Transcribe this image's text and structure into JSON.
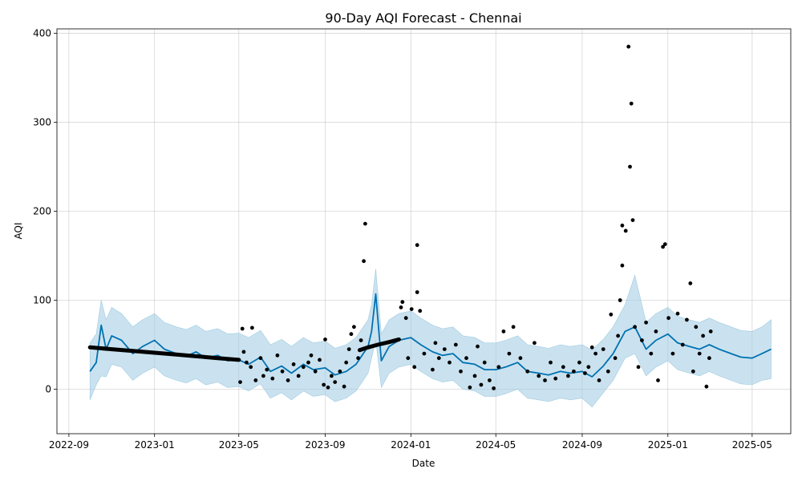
{
  "chart_data": {
    "type": "line",
    "title": "90-Day AQI Forecast - Chennai",
    "xlabel": "Date",
    "ylabel": "AQI",
    "xlim": [
      "2022-08-15",
      "2025-06-25"
    ],
    "ylim": [
      -50,
      405
    ],
    "x_ticks": [
      "2022-09",
      "2023-01",
      "2023-05",
      "2023-09",
      "2024-01",
      "2024-05",
      "2024-09",
      "2025-01",
      "2025-05"
    ],
    "y_ticks": [
      0,
      100,
      200,
      300,
      400
    ],
    "grid": true,
    "colors": {
      "forecast": "#0072B2",
      "interval": "#9ecae1",
      "actual": "#000000"
    },
    "forecast": {
      "dates": [
        "2022-10-01",
        "2022-10-10",
        "2022-10-17",
        "2022-10-24",
        "2022-11-01",
        "2022-11-15",
        "2022-12-01",
        "2022-12-15",
        "2023-01-01",
        "2023-01-15",
        "2023-02-01",
        "2023-02-15",
        "2023-03-01",
        "2023-03-15",
        "2023-04-01",
        "2023-04-15",
        "2023-05-01",
        "2023-05-15",
        "2023-06-01",
        "2023-06-15",
        "2023-07-01",
        "2023-07-15",
        "2023-08-01",
        "2023-08-15",
        "2023-09-01",
        "2023-09-15",
        "2023-10-01",
        "2023-10-15",
        "2023-11-01",
        "2023-11-06",
        "2023-11-12",
        "2023-11-20",
        "2023-12-01",
        "2023-12-15",
        "2024-01-01",
        "2024-01-15",
        "2024-02-01",
        "2024-02-15",
        "2024-03-01",
        "2024-03-15",
        "2024-04-01",
        "2024-04-15",
        "2024-05-01",
        "2024-05-15",
        "2024-06-01",
        "2024-06-15",
        "2024-07-01",
        "2024-07-15",
        "2024-08-01",
        "2024-08-15",
        "2024-09-01",
        "2024-09-15",
        "2024-10-01",
        "2024-10-15",
        "2024-11-01",
        "2024-11-15",
        "2024-12-01",
        "2024-12-15",
        "2025-01-01",
        "2025-01-15",
        "2025-02-01",
        "2025-02-15",
        "2025-03-01",
        "2025-03-15",
        "2025-04-01",
        "2025-04-15",
        "2025-05-01",
        "2025-05-15",
        "2025-05-28"
      ],
      "yhat": [
        20,
        30,
        72,
        45,
        60,
        55,
        40,
        48,
        55,
        45,
        40,
        37,
        42,
        35,
        38,
        32,
        33,
        28,
        36,
        20,
        26,
        18,
        28,
        22,
        24,
        16,
        20,
        28,
        48,
        65,
        107,
        32,
        48,
        55,
        58,
        50,
        42,
        38,
        40,
        30,
        28,
        22,
        22,
        25,
        30,
        20,
        18,
        16,
        20,
        18,
        20,
        14,
        26,
        40,
        65,
        70,
        45,
        55,
        62,
        52,
        48,
        45,
        50,
        45,
        40,
        36,
        35,
        40,
        45
      ],
      "yhat_lower": [
        -12,
        5,
        15,
        14,
        28,
        25,
        10,
        18,
        25,
        15,
        10,
        7,
        12,
        5,
        8,
        2,
        3,
        -2,
        6,
        -10,
        -4,
        -12,
        -2,
        -8,
        -6,
        -14,
        -10,
        -2,
        18,
        35,
        55,
        2,
        18,
        25,
        28,
        20,
        12,
        8,
        10,
        0,
        -2,
        -8,
        -8,
        -5,
        0,
        -10,
        -12,
        -14,
        -10,
        -12,
        -10,
        -20,
        -4,
        10,
        35,
        40,
        15,
        25,
        32,
        22,
        18,
        15,
        20,
        15,
        10,
        6,
        5,
        10,
        12
      ],
      "yhat_upper": [
        52,
        62,
        100,
        78,
        92,
        85,
        70,
        78,
        85,
        75,
        70,
        67,
        72,
        65,
        68,
        62,
        63,
        58,
        66,
        50,
        56,
        48,
        58,
        52,
        54,
        46,
        50,
        58,
        78,
        95,
        135,
        62,
        78,
        85,
        88,
        80,
        72,
        68,
        70,
        60,
        58,
        52,
        52,
        55,
        60,
        50,
        48,
        46,
        50,
        48,
        50,
        44,
        56,
        70,
        95,
        128,
        75,
        85,
        92,
        82,
        78,
        75,
        80,
        75,
        70,
        66,
        65,
        70,
        78
      ]
    },
    "actual_series_A": {
      "dates": [
        "2022-10-01",
        "2022-11-01",
        "2022-12-01",
        "2023-01-01",
        "2023-02-01",
        "2023-03-01",
        "2023-04-01",
        "2023-05-01"
      ],
      "values": [
        47,
        45,
        43,
        41,
        39,
        37,
        35,
        33
      ]
    },
    "actual_series_B": {
      "dates": [
        "2023-10-20",
        "2023-11-01",
        "2023-11-15",
        "2023-12-01",
        "2023-12-15"
      ],
      "values": [
        44,
        47,
        50,
        53,
        56
      ]
    },
    "actual_scatter": [
      [
        "2023-05-03",
        8
      ],
      [
        "2023-05-06",
        68
      ],
      [
        "2023-05-08",
        42
      ],
      [
        "2023-05-12",
        30
      ],
      [
        "2023-05-18",
        25
      ],
      [
        "2023-05-20",
        69
      ],
      [
        "2023-05-25",
        10
      ],
      [
        "2023-06-01",
        35
      ],
      [
        "2023-06-05",
        15
      ],
      [
        "2023-06-10",
        22
      ],
      [
        "2023-06-18",
        12
      ],
      [
        "2023-06-25",
        38
      ],
      [
        "2023-07-02",
        20
      ],
      [
        "2023-07-10",
        10
      ],
      [
        "2023-07-18",
        28
      ],
      [
        "2023-07-25",
        15
      ],
      [
        "2023-08-01",
        25
      ],
      [
        "2023-08-08",
        30
      ],
      [
        "2023-08-12",
        38
      ],
      [
        "2023-08-18",
        20
      ],
      [
        "2023-08-24",
        33
      ],
      [
        "2023-08-30",
        5
      ],
      [
        "2023-09-01",
        56
      ],
      [
        "2023-09-05",
        2
      ],
      [
        "2023-09-10",
        15
      ],
      [
        "2023-09-15",
        8
      ],
      [
        "2023-09-22",
        20
      ],
      [
        "2023-09-28",
        3
      ],
      [
        "2023-10-01",
        30
      ],
      [
        "2023-10-05",
        45
      ],
      [
        "2023-10-08",
        62
      ],
      [
        "2023-10-12",
        70
      ],
      [
        "2023-10-18",
        35
      ],
      [
        "2023-10-22",
        55
      ],
      [
        "2023-10-26",
        144
      ],
      [
        "2023-10-28",
        186
      ],
      [
        "2023-12-18",
        92
      ],
      [
        "2023-12-20",
        98
      ],
      [
        "2023-12-25",
        80
      ],
      [
        "2023-12-28",
        35
      ],
      [
        "2024-01-02",
        90
      ],
      [
        "2024-01-06",
        25
      ],
      [
        "2024-01-10",
        162
      ],
      [
        "2024-01-10",
        109
      ],
      [
        "2024-01-14",
        88
      ],
      [
        "2024-01-20",
        40
      ],
      [
        "2024-02-01",
        22
      ],
      [
        "2024-02-05",
        52
      ],
      [
        "2024-02-10",
        35
      ],
      [
        "2024-02-18",
        45
      ],
      [
        "2024-02-25",
        30
      ],
      [
        "2024-03-05",
        50
      ],
      [
        "2024-03-12",
        20
      ],
      [
        "2024-03-20",
        35
      ],
      [
        "2024-03-25",
        2
      ],
      [
        "2024-04-01",
        15
      ],
      [
        "2024-04-05",
        48
      ],
      [
        "2024-04-10",
        5
      ],
      [
        "2024-04-15",
        30
      ],
      [
        "2024-04-22",
        10
      ],
      [
        "2024-04-28",
        1
      ],
      [
        "2024-05-05",
        25
      ],
      [
        "2024-05-12",
        65
      ],
      [
        "2024-05-20",
        40
      ],
      [
        "2024-05-26",
        70
      ],
      [
        "2024-06-05",
        35
      ],
      [
        "2024-06-15",
        20
      ],
      [
        "2024-06-25",
        52
      ],
      [
        "2024-07-01",
        15
      ],
      [
        "2024-07-10",
        10
      ],
      [
        "2024-07-18",
        30
      ],
      [
        "2024-07-25",
        12
      ],
      [
        "2024-08-05",
        25
      ],
      [
        "2024-08-12",
        15
      ],
      [
        "2024-08-20",
        20
      ],
      [
        "2024-08-28",
        30
      ],
      [
        "2024-09-05",
        18
      ],
      [
        "2024-09-10",
        25
      ],
      [
        "2024-09-15",
        47
      ],
      [
        "2024-09-20",
        40
      ],
      [
        "2024-09-25",
        10
      ],
      [
        "2024-10-01",
        45
      ],
      [
        "2024-10-08",
        20
      ],
      [
        "2024-10-12",
        84
      ],
      [
        "2024-10-18",
        35
      ],
      [
        "2024-10-22",
        60
      ],
      [
        "2024-10-25",
        100
      ],
      [
        "2024-10-28",
        184
      ],
      [
        "2024-10-28",
        139
      ],
      [
        "2024-11-02",
        178
      ],
      [
        "2024-11-06",
        385
      ],
      [
        "2024-11-08",
        250
      ],
      [
        "2024-11-10",
        321
      ],
      [
        "2024-11-12",
        190
      ],
      [
        "2024-11-15",
        70
      ],
      [
        "2024-11-20",
        25
      ],
      [
        "2024-11-25",
        55
      ],
      [
        "2024-12-01",
        75
      ],
      [
        "2024-12-08",
        40
      ],
      [
        "2024-12-15",
        65
      ],
      [
        "2024-12-18",
        10
      ],
      [
        "2024-12-25",
        160
      ],
      [
        "2024-12-28",
        163
      ],
      [
        "2025-01-02",
        80
      ],
      [
        "2025-01-08",
        40
      ],
      [
        "2025-01-15",
        85
      ],
      [
        "2025-01-22",
        50
      ],
      [
        "2025-01-28",
        78
      ],
      [
        "2025-02-02",
        119
      ],
      [
        "2025-02-06",
        20
      ],
      [
        "2025-02-10",
        70
      ],
      [
        "2025-02-15",
        40
      ],
      [
        "2025-02-20",
        60
      ],
      [
        "2025-02-25",
        3
      ],
      [
        "2025-03-01",
        35
      ],
      [
        "2025-03-03",
        65
      ]
    ]
  }
}
